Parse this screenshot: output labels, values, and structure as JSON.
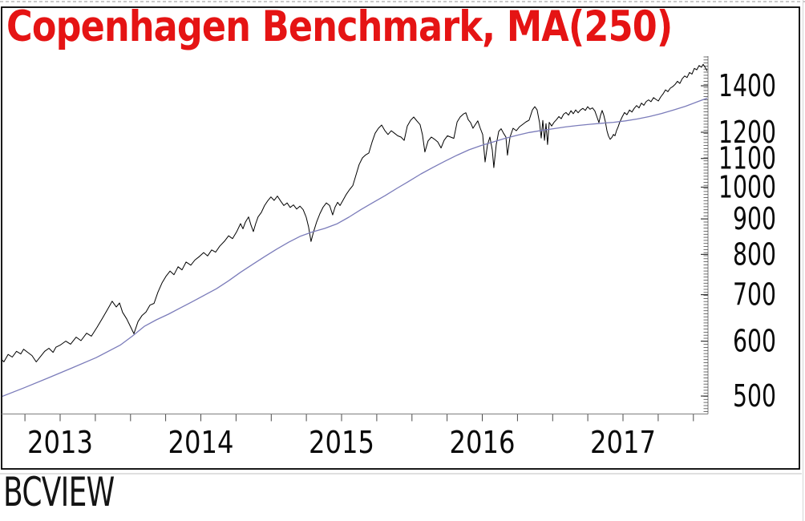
{
  "title": "Copenhagen Benchmark, MA(250)",
  "title_color": "#e51414",
  "watermark": "BCVIEW",
  "chart_data": {
    "type": "line",
    "title": "Copenhagen Benchmark, MA(250)",
    "xlabel": "",
    "ylabel": "",
    "grid": false,
    "legend_position": "none",
    "x_axis": {
      "range_years": [
        2012.573,
        2017.604
      ],
      "tick_years": [
        2013,
        2014,
        2015,
        2016,
        2017
      ],
      "tick_labels": [
        "2013",
        "2014",
        "2015",
        "2016",
        "2017"
      ],
      "minor_tick_interval_years": 0.25
    },
    "y_axis": {
      "side": "right",
      "scale": "log",
      "range": [
        470,
        1545
      ],
      "tick_values": [
        1400,
        1200,
        1100,
        1000,
        900,
        800,
        700,
        600,
        500
      ],
      "tick_labels": [
        "1400",
        "1200",
        "1100",
        "1000",
        "900",
        "800",
        "700",
        "600",
        "500"
      ]
    },
    "series": [
      {
        "name": "Copenhagen Benchmark",
        "color": "#000000",
        "width": 1,
        "points": [
          [
            2012.573,
            568
          ],
          [
            2012.6,
            560
          ],
          [
            2012.63,
            574
          ],
          [
            2012.66,
            569
          ],
          [
            2012.69,
            580
          ],
          [
            2012.72,
            575
          ],
          [
            2012.74,
            584
          ],
          [
            2012.77,
            578
          ],
          [
            2012.8,
            572
          ],
          [
            2012.83,
            560
          ],
          [
            2012.86,
            570
          ],
          [
            2012.89,
            580
          ],
          [
            2012.92,
            586
          ],
          [
            2012.95,
            578
          ],
          [
            2012.97,
            588
          ],
          [
            2013.0,
            592
          ],
          [
            2013.04,
            600
          ],
          [
            2013.074,
            594
          ],
          [
            2013.114,
            608
          ],
          [
            2013.148,
            601
          ],
          [
            2013.188,
            616
          ],
          [
            2013.222,
            610
          ],
          [
            2013.262,
            628
          ],
          [
            2013.302,
            648
          ],
          [
            2013.336,
            666
          ],
          [
            2013.37,
            685
          ],
          [
            2013.399,
            672
          ],
          [
            2013.422,
            681
          ],
          [
            2013.444,
            660
          ],
          [
            2013.473,
            646
          ],
          [
            2013.496,
            632
          ],
          [
            2013.524,
            615
          ],
          [
            2013.553,
            640
          ],
          [
            2013.581,
            653
          ],
          [
            2013.61,
            661
          ],
          [
            2013.638,
            676
          ],
          [
            2013.667,
            680
          ],
          [
            2013.695,
            706
          ],
          [
            2013.724,
            728
          ],
          [
            2013.752,
            744
          ],
          [
            2013.781,
            757
          ],
          [
            2013.809,
            748
          ],
          [
            2013.838,
            768
          ],
          [
            2013.866,
            760
          ],
          [
            2013.895,
            780
          ],
          [
            2013.929,
            772
          ],
          [
            2013.957,
            785
          ],
          [
            2013.991,
            795
          ],
          [
            2014.02,
            805
          ],
          [
            2014.048,
            796
          ],
          [
            2014.077,
            812
          ],
          [
            2014.105,
            806
          ],
          [
            2014.134,
            822
          ],
          [
            2014.168,
            836
          ],
          [
            2014.197,
            851
          ],
          [
            2014.225,
            843
          ],
          [
            2014.254,
            862
          ],
          [
            2014.282,
            886
          ],
          [
            2014.299,
            871
          ],
          [
            2014.316,
            890
          ],
          [
            2014.339,
            906
          ],
          [
            2014.356,
            882
          ],
          [
            2014.373,
            863
          ],
          [
            2014.39,
            886
          ],
          [
            2014.407,
            906
          ],
          [
            2014.43,
            920
          ],
          [
            2014.453,
            941
          ],
          [
            2014.476,
            956
          ],
          [
            2014.498,
            968
          ],
          [
            2014.521,
            957
          ],
          [
            2014.544,
            971
          ],
          [
            2014.567,
            955
          ],
          [
            2014.59,
            941
          ],
          [
            2014.613,
            949
          ],
          [
            2014.635,
            935
          ],
          [
            2014.658,
            943
          ],
          [
            2014.681,
            930
          ],
          [
            2014.704,
            939
          ],
          [
            2014.727,
            928
          ],
          [
            2014.749,
            905
          ],
          [
            2014.766,
            876
          ],
          [
            2014.783,
            835
          ],
          [
            2014.8,
            861
          ],
          [
            2014.823,
            891
          ],
          [
            2014.846,
            916
          ],
          [
            2014.869,
            936
          ],
          [
            2014.892,
            949
          ],
          [
            2014.915,
            941
          ],
          [
            2014.937,
            912
          ],
          [
            2014.954,
            936
          ],
          [
            2014.972,
            951
          ],
          [
            2014.989,
            941
          ],
          [
            2015.011,
            958
          ],
          [
            2015.034,
            977
          ],
          [
            2015.057,
            992
          ],
          [
            2015.08,
            1005
          ],
          [
            2015.103,
            1042
          ],
          [
            2015.125,
            1078
          ],
          [
            2015.148,
            1102
          ],
          [
            2015.171,
            1113
          ],
          [
            2015.194,
            1120
          ],
          [
            2015.217,
            1162
          ],
          [
            2015.239,
            1196
          ],
          [
            2015.262,
            1216
          ],
          [
            2015.285,
            1229
          ],
          [
            2015.308,
            1206
          ],
          [
            2015.33,
            1191
          ],
          [
            2015.353,
            1206
          ],
          [
            2015.376,
            1196
          ],
          [
            2015.399,
            1186
          ],
          [
            2015.422,
            1181
          ],
          [
            2015.445,
            1168
          ],
          [
            2015.467,
            1225
          ],
          [
            2015.49,
            1248
          ],
          [
            2015.513,
            1262
          ],
          [
            2015.536,
            1245
          ],
          [
            2015.558,
            1231
          ],
          [
            2015.575,
            1190
          ],
          [
            2015.592,
            1124
          ],
          [
            2015.615,
            1166
          ],
          [
            2015.638,
            1181
          ],
          [
            2015.661,
            1172
          ],
          [
            2015.684,
            1162
          ],
          [
            2015.707,
            1139
          ],
          [
            2015.729,
            1168
          ],
          [
            2015.752,
            1186
          ],
          [
            2015.775,
            1181
          ],
          [
            2015.798,
            1176
          ],
          [
            2015.821,
            1241
          ],
          [
            2015.843,
            1262
          ],
          [
            2015.866,
            1275
          ],
          [
            2015.883,
            1280
          ],
          [
            2015.9,
            1251
          ],
          [
            2015.917,
            1239
          ],
          [
            2015.934,
            1216
          ],
          [
            2015.951,
            1231
          ],
          [
            2015.968,
            1246
          ],
          [
            2015.986,
            1216
          ],
          [
            2016.003,
            1191
          ],
          [
            2016.02,
            1087
          ],
          [
            2016.037,
            1151
          ],
          [
            2016.054,
            1181
          ],
          [
            2016.071,
            1131
          ],
          [
            2016.082,
            1067
          ],
          [
            2016.099,
            1151
          ],
          [
            2016.117,
            1203
          ],
          [
            2016.134,
            1214
          ],
          [
            2016.151,
            1196
          ],
          [
            2016.168,
            1181
          ],
          [
            2016.179,
            1112
          ],
          [
            2016.197,
            1181
          ],
          [
            2016.219,
            1216
          ],
          [
            2016.242,
            1206
          ],
          [
            2016.265,
            1222
          ],
          [
            2016.288,
            1232
          ],
          [
            2016.311,
            1242
          ],
          [
            2016.333,
            1249
          ],
          [
            2016.356,
            1292
          ],
          [
            2016.373,
            1306
          ],
          [
            2016.39,
            1292
          ],
          [
            2016.407,
            1239
          ],
          [
            2016.419,
            1177
          ],
          [
            2016.43,
            1248
          ],
          [
            2016.442,
            1168
          ],
          [
            2016.453,
            1235
          ],
          [
            2016.464,
            1152
          ],
          [
            2016.476,
            1240
          ],
          [
            2016.493,
            1225
          ],
          [
            2016.51,
            1240
          ],
          [
            2016.527,
            1251
          ],
          [
            2016.544,
            1264
          ],
          [
            2016.561,
            1255
          ],
          [
            2016.578,
            1274
          ],
          [
            2016.595,
            1281
          ],
          [
            2016.613,
            1270
          ],
          [
            2016.63,
            1289
          ],
          [
            2016.647,
            1276
          ],
          [
            2016.664,
            1292
          ],
          [
            2016.681,
            1280
          ],
          [
            2016.698,
            1292
          ],
          [
            2016.715,
            1299
          ],
          [
            2016.732,
            1290
          ],
          [
            2016.749,
            1306
          ],
          [
            2016.766,
            1295
          ],
          [
            2016.783,
            1301
          ],
          [
            2016.8,
            1288
          ],
          [
            2016.818,
            1257
          ],
          [
            2016.829,
            1239
          ],
          [
            2016.84,
            1268
          ],
          [
            2016.852,
            1290
          ],
          [
            2016.863,
            1270
          ],
          [
            2016.875,
            1241
          ],
          [
            2016.886,
            1206
          ],
          [
            2016.897,
            1185
          ],
          [
            2016.909,
            1172
          ],
          [
            2016.92,
            1179
          ],
          [
            2016.932,
            1191
          ],
          [
            2016.943,
            1186
          ],
          [
            2016.954,
            1206
          ],
          [
            2016.966,
            1222
          ],
          [
            2016.977,
            1241
          ],
          [
            2016.994,
            1262
          ],
          [
            2017.011,
            1281
          ],
          [
            2017.028,
            1272
          ],
          [
            2017.046,
            1292
          ],
          [
            2017.063,
            1283
          ],
          [
            2017.08,
            1299
          ],
          [
            2017.097,
            1311
          ],
          [
            2017.114,
            1301
          ],
          [
            2017.131,
            1322
          ],
          [
            2017.148,
            1312
          ],
          [
            2017.165,
            1329
          ],
          [
            2017.182,
            1336
          ],
          [
            2017.199,
            1328
          ],
          [
            2017.217,
            1346
          ],
          [
            2017.234,
            1338
          ],
          [
            2017.251,
            1331
          ],
          [
            2017.268,
            1349
          ],
          [
            2017.285,
            1363
          ],
          [
            2017.302,
            1381
          ],
          [
            2017.319,
            1373
          ],
          [
            2017.336,
            1389
          ],
          [
            2017.353,
            1396
          ],
          [
            2017.37,
            1406
          ],
          [
            2017.387,
            1421
          ],
          [
            2017.404,
            1411
          ],
          [
            2017.421,
            1433
          ],
          [
            2017.438,
            1446
          ],
          [
            2017.455,
            1439
          ],
          [
            2017.473,
            1463
          ],
          [
            2017.49,
            1455
          ],
          [
            2017.507,
            1483
          ],
          [
            2017.524,
            1476
          ],
          [
            2017.541,
            1497
          ],
          [
            2017.558,
            1489
          ],
          [
            2017.57,
            1503
          ],
          [
            2017.581,
            1491
          ],
          [
            2017.592,
            1478
          ],
          [
            2017.604,
            1466
          ]
        ]
      },
      {
        "name": "MA(250)",
        "color": "#7b7cba",
        "width": 1.3,
        "points": [
          [
            2012.573,
            498
          ],
          [
            2012.744,
            514
          ],
          [
            2012.915,
            531
          ],
          [
            2013.085,
            549
          ],
          [
            2013.256,
            568
          ],
          [
            2013.427,
            592
          ],
          [
            2013.513,
            610
          ],
          [
            2013.598,
            630
          ],
          [
            2013.684,
            644
          ],
          [
            2013.769,
            656
          ],
          [
            2013.855,
            670
          ],
          [
            2013.94,
            684
          ],
          [
            2014.026,
            699
          ],
          [
            2014.111,
            714
          ],
          [
            2014.197,
            733
          ],
          [
            2014.282,
            754
          ],
          [
            2014.368,
            774
          ],
          [
            2014.453,
            794
          ],
          [
            2014.538,
            814
          ],
          [
            2014.624,
            833
          ],
          [
            2014.709,
            850
          ],
          [
            2014.795,
            862
          ],
          [
            2014.88,
            872
          ],
          [
            2014.966,
            885
          ],
          [
            2015.051,
            905
          ],
          [
            2015.137,
            928
          ],
          [
            2015.222,
            950
          ],
          [
            2015.308,
            972
          ],
          [
            2015.393,
            996
          ],
          [
            2015.479,
            1020
          ],
          [
            2015.564,
            1045
          ],
          [
            2015.65,
            1068
          ],
          [
            2015.735,
            1090
          ],
          [
            2015.821,
            1112
          ],
          [
            2015.906,
            1132
          ],
          [
            2015.991,
            1148
          ],
          [
            2016.077,
            1162
          ],
          [
            2016.162,
            1176
          ],
          [
            2016.248,
            1188
          ],
          [
            2016.333,
            1199
          ],
          [
            2016.419,
            1207
          ],
          [
            2016.504,
            1214
          ],
          [
            2016.59,
            1221
          ],
          [
            2016.675,
            1227
          ],
          [
            2016.761,
            1232
          ],
          [
            2016.846,
            1236
          ],
          [
            2016.932,
            1240
          ],
          [
            2017.017,
            1246
          ],
          [
            2017.103,
            1254
          ],
          [
            2017.188,
            1264
          ],
          [
            2017.274,
            1277
          ],
          [
            2017.359,
            1292
          ],
          [
            2017.444,
            1308
          ],
          [
            2017.53,
            1328
          ],
          [
            2017.604,
            1345
          ]
        ]
      }
    ]
  }
}
